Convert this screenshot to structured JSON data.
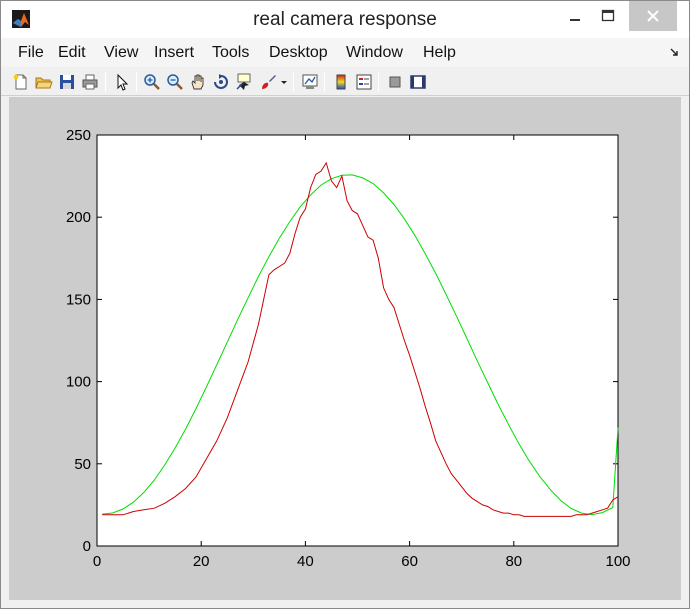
{
  "window": {
    "title": "real camera response",
    "icon": "matlab-icon",
    "controls": [
      "minimize-icon",
      "maximize-icon",
      "close-icon"
    ]
  },
  "menubar": {
    "items": [
      "File",
      "Edit",
      "View",
      "Insert",
      "Tools",
      "Desktop",
      "Window",
      "Help"
    ]
  },
  "toolbar": {
    "buttons": [
      "new-figure-icon",
      "open-file-icon",
      "save-icon",
      "print-icon",
      "edit-plot-arrow-icon",
      "zoom-in-icon",
      "zoom-out-icon",
      "pan-hand-icon",
      "rotate-3d-icon",
      "data-cursor-icon",
      "brush-icon",
      "brush-dropdown-icon",
      "link-plot-icon",
      "colorbar-icon",
      "legend-icon",
      "hide-plot-tools-icon",
      "show-plot-tools-icon"
    ]
  },
  "colors": {
    "figure_bg": "#cccccc",
    "axes_bg": "#ffffff",
    "series_green": "#00dd00",
    "series_red": "#cc0000"
  },
  "chart_data": {
    "type": "line",
    "title": "",
    "xlabel": "",
    "ylabel": "",
    "xlim": [
      0,
      100
    ],
    "ylim": [
      0,
      250
    ],
    "xticks": [
      0,
      20,
      40,
      60,
      80,
      100
    ],
    "yticks": [
      0,
      50,
      100,
      150,
      200,
      250
    ],
    "grid": false,
    "legend": "none",
    "series": [
      {
        "color": "#00dd00",
        "x": [
          1,
          3,
          5,
          7,
          9,
          11,
          13,
          15,
          17,
          19,
          21,
          23,
          25,
          27,
          29,
          31,
          33,
          35,
          37,
          39,
          41,
          43,
          45,
          47,
          49,
          51,
          53,
          55,
          57,
          59,
          61,
          63,
          65,
          67,
          69,
          71,
          73,
          75,
          77,
          79,
          81,
          83,
          85,
          87,
          89,
          91,
          93,
          95,
          97,
          99,
          100
        ],
        "y": [
          19.4,
          20.1,
          22.5,
          26.7,
          32.6,
          40.1,
          49.3,
          59.6,
          71.1,
          83.6,
          96.7,
          110.3,
          124.0,
          137.7,
          151.0,
          164.0,
          176.0,
          187.3,
          197.3,
          206.3,
          213.5,
          219.5,
          223.4,
          225.5,
          225.7,
          223.9,
          220.5,
          214.8,
          207.7,
          199.0,
          189.0,
          177.8,
          165.8,
          153.0,
          139.8,
          126.2,
          112.6,
          99.2,
          86.1,
          73.8,
          62.1,
          51.6,
          42.2,
          34.3,
          27.7,
          22.9,
          20.0,
          19.1,
          20.3,
          23.4,
          72.0
        ]
      },
      {
        "color": "#cc0000",
        "x": [
          1,
          3,
          5,
          7,
          9,
          11,
          13,
          15,
          17,
          19,
          21,
          23,
          25,
          27,
          29,
          31,
          32,
          33,
          34,
          35,
          36,
          37,
          38,
          39,
          40,
          41,
          42,
          43,
          44,
          45,
          46,
          47,
          48,
          49,
          50,
          51,
          52,
          53,
          54,
          55,
          56,
          57,
          58,
          59,
          60,
          61,
          62,
          63,
          64,
          65,
          66,
          67,
          68,
          69,
          70,
          71,
          72,
          73,
          74,
          75,
          76,
          77,
          78,
          79,
          80,
          81,
          82,
          83,
          84,
          85,
          86,
          87,
          88,
          89,
          90,
          91,
          92,
          93,
          94,
          95,
          96,
          97,
          98,
          99,
          100
        ],
        "y": [
          19,
          19,
          19,
          21,
          22,
          23,
          26,
          30,
          35,
          42,
          53,
          64,
          78,
          95,
          112,
          135,
          150,
          165,
          168,
          170,
          172,
          178,
          190,
          200,
          205,
          218,
          226,
          228,
          233,
          222,
          218,
          225,
          210,
          204,
          202,
          195,
          188,
          186,
          175,
          157,
          150,
          145,
          135,
          125,
          116,
          106,
          96,
          85,
          75,
          64,
          57,
          50,
          44,
          40,
          36,
          32,
          29,
          27,
          25,
          24,
          22,
          21,
          20,
          20,
          19,
          19,
          18,
          18,
          18,
          18,
          18,
          18,
          18,
          18,
          18,
          18,
          19,
          19,
          19,
          20,
          21,
          22,
          23,
          28,
          30
        ]
      }
    ]
  }
}
